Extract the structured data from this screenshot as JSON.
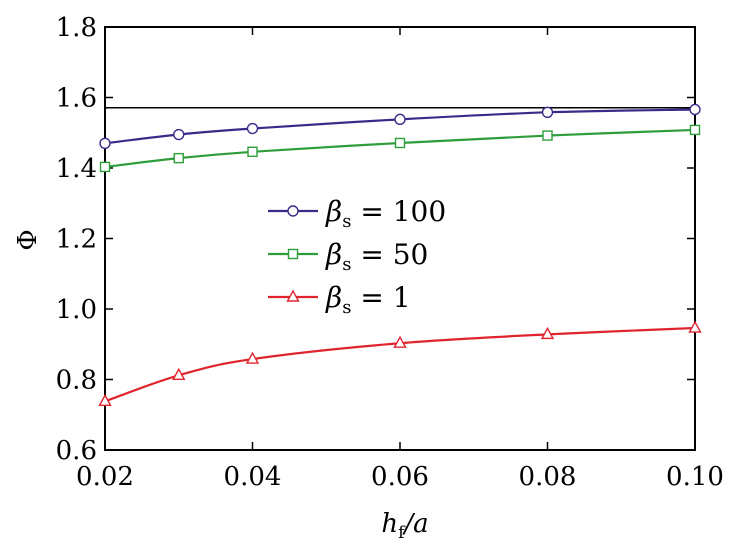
{
  "chart_data": {
    "type": "line",
    "x": [
      0.02,
      0.03,
      0.04,
      0.06,
      0.08,
      0.1
    ],
    "x_tick_values": [
      0.02,
      0.04,
      0.06,
      0.08,
      0.1
    ],
    "x_tick_labels": [
      "0.02",
      "0.04",
      "0.06",
      "0.08",
      "0.10"
    ],
    "y_tick_values": [
      0.6,
      0.8,
      1.0,
      1.2,
      1.4,
      1.6,
      1.8
    ],
    "y_tick_labels": [
      "0.6",
      "0.8",
      "1.0",
      "1.2",
      "1.4",
      "1.6",
      "1.8"
    ],
    "xlim": [
      0.02,
      0.1
    ],
    "ylim": [
      0.6,
      1.8
    ],
    "xlabel": {
      "main": "h",
      "sub": "f",
      "rest": "/a"
    },
    "ylabel": "Φ",
    "reference_line": {
      "y": 1.5708,
      "color": "#000000"
    },
    "legend_position": "center-left",
    "series": [
      {
        "name": {
          "symbol": "β",
          "sub": "s",
          "rest": " = 100"
        },
        "color": "#3b2a8a",
        "marker": "circle",
        "values": [
          1.47,
          1.495,
          1.512,
          1.538,
          1.558,
          1.566
        ]
      },
      {
        "name": {
          "symbol": "β",
          "sub": "s",
          "rest": " = 50"
        },
        "color": "#2e9e3a",
        "marker": "square",
        "values": [
          1.403,
          1.428,
          1.446,
          1.471,
          1.492,
          1.508
        ]
      },
      {
        "name": {
          "symbol": "β",
          "sub": "s",
          "rest": " = 1"
        },
        "color": "#e0242e",
        "marker": "triangle",
        "values": [
          0.738,
          0.812,
          0.858,
          0.903,
          0.928,
          0.946
        ]
      }
    ]
  }
}
